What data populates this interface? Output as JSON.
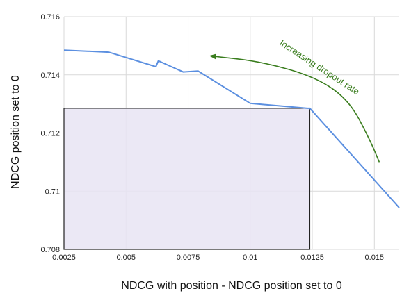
{
  "chart_data": {
    "type": "line",
    "xlabel": "NDCG with position - NDCG position set to 0",
    "ylabel": "NDCG position set to 0",
    "xlim": [
      0.0025,
      0.016
    ],
    "ylim": [
      0.708,
      0.716
    ],
    "x_ticks": [
      "0.0025",
      "0.005",
      "0.0075",
      "0.01",
      "0.0125",
      "0.015"
    ],
    "y_ticks": [
      "0.708",
      "0.71",
      "0.712",
      "0.714",
      "0.716"
    ],
    "grid": true,
    "series": [
      {
        "color": "#5b8fe0",
        "x": [
          0.0025,
          0.0043,
          0.0062,
          0.0063,
          0.0073,
          0.0079,
          0.01,
          0.0123,
          0.0124,
          0.016
        ],
        "y": [
          0.71485,
          0.71478,
          0.71428,
          0.71448,
          0.7141,
          0.71413,
          0.71302,
          0.71285,
          0.71285,
          0.70943
        ]
      }
    ],
    "highlight_box": {
      "x": [
        0.0025,
        0.0124
      ],
      "y": [
        0.708,
        0.71285
      ],
      "fill": "#e7e4f3",
      "stroke": "#222222"
    },
    "annotation": {
      "text": "Increasing dropout rate",
      "color": "#3a7d1e",
      "arrow_path": [
        [
          0.0152,
          0.711
        ],
        [
          0.0148,
          0.7118
        ],
        [
          0.014,
          0.7131
        ],
        [
          0.0127,
          0.7139
        ],
        [
          0.0105,
          0.71445
        ],
        [
          0.0084,
          0.71465
        ]
      ]
    }
  }
}
